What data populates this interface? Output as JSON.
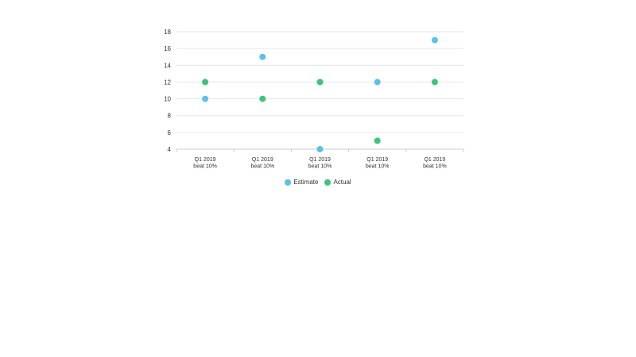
{
  "chart_data": {
    "type": "scatter",
    "title": "",
    "xlabel": "",
    "ylabel": "",
    "ylim": [
      4,
      18
    ],
    "yticks": [
      4,
      6,
      8,
      10,
      12,
      14,
      16,
      18
    ],
    "grid": true,
    "legend_position": "bottom-center",
    "categories": [
      [
        "Q1 2019",
        "beat 10%"
      ],
      [
        "Q1 2019",
        "beat 10%"
      ],
      [
        "Q1 2019",
        "beat 10%"
      ],
      [
        "Q1 2019",
        "beat 10%"
      ],
      [
        "Q1 2019",
        "beat 10%"
      ]
    ],
    "series": [
      {
        "name": "Estimate",
        "color": "#5bc0eb",
        "values": [
          10,
          15,
          4,
          12,
          17
        ]
      },
      {
        "name": "Actual",
        "color": "#3cc57a",
        "values": [
          12,
          10,
          12,
          5,
          12
        ]
      }
    ]
  },
  "legend": {
    "items": [
      {
        "label": "Estimate",
        "color": "#5bc0eb"
      },
      {
        "label": "Actual",
        "color": "#3cc57a"
      }
    ]
  }
}
